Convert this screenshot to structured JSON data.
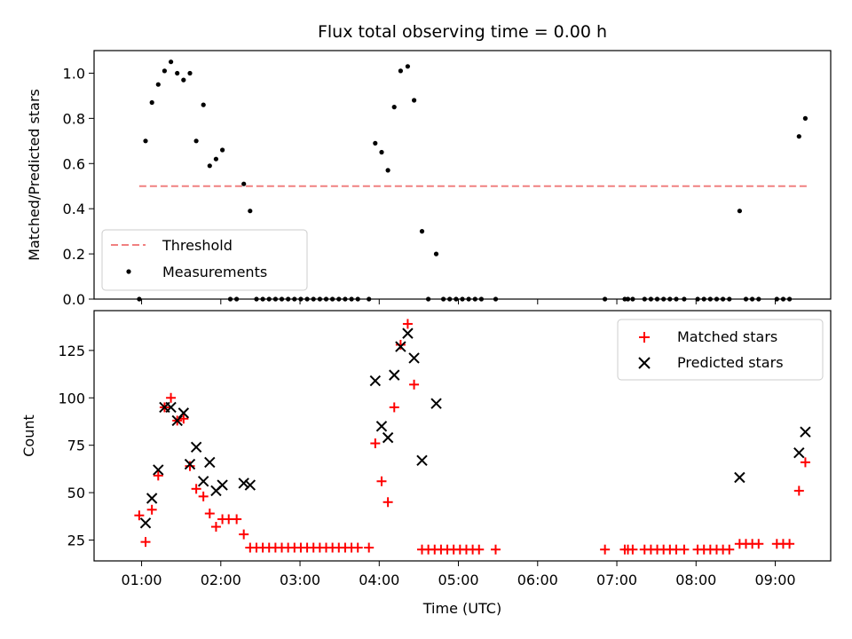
{
  "title": "Flux total observing time = 0.00 h",
  "colors": {
    "threshold": "#f08080",
    "measurements": "#000000",
    "matched": "#ff0000",
    "predicted": "#000000"
  },
  "chart_data": [
    {
      "type": "scatter",
      "ylabel": "Matched/Predicted stars",
      "xlim": [
        0.4,
        9.7
      ],
      "ylim": [
        0,
        1.1
      ],
      "yticks": [
        0.0,
        0.2,
        0.4,
        0.6,
        0.8,
        1.0
      ],
      "ytick_labels": [
        "0.0",
        "0.2",
        "0.4",
        "0.6",
        "0.8",
        "1.0"
      ],
      "legend": {
        "position": "lower-left",
        "threshold_label": "Threshold",
        "measurements_label": "Measurements"
      },
      "threshold": {
        "value": 0.5,
        "x_range": [
          0.97,
          9.4
        ]
      },
      "measurements": [
        [
          0.97,
          0.0
        ],
        [
          1.05,
          0.7
        ],
        [
          1.13,
          0.87
        ],
        [
          1.21,
          0.95
        ],
        [
          1.29,
          1.01
        ],
        [
          1.37,
          1.05
        ],
        [
          1.45,
          1.0
        ],
        [
          1.53,
          0.97
        ],
        [
          1.61,
          1.0
        ],
        [
          1.69,
          0.7
        ],
        [
          1.78,
          0.86
        ],
        [
          1.86,
          0.59
        ],
        [
          1.94,
          0.62
        ],
        [
          2.02,
          0.66
        ],
        [
          2.12,
          0.0
        ],
        [
          2.2,
          0.0
        ],
        [
          2.29,
          0.51
        ],
        [
          2.37,
          0.39
        ],
        [
          2.45,
          0.0
        ],
        [
          2.53,
          0.0
        ],
        [
          2.61,
          0.0
        ],
        [
          2.69,
          0.0
        ],
        [
          2.77,
          0.0
        ],
        [
          2.85,
          0.0
        ],
        [
          2.93,
          0.0
        ],
        [
          3.01,
          0.0
        ],
        [
          3.09,
          0.0
        ],
        [
          3.17,
          0.0
        ],
        [
          3.25,
          0.0
        ],
        [
          3.33,
          0.0
        ],
        [
          3.41,
          0.0
        ],
        [
          3.49,
          0.0
        ],
        [
          3.57,
          0.0
        ],
        [
          3.65,
          0.0
        ],
        [
          3.73,
          0.0
        ],
        [
          3.87,
          0.0
        ],
        [
          3.95,
          0.69
        ],
        [
          4.03,
          0.65
        ],
        [
          4.11,
          0.57
        ],
        [
          4.19,
          0.85
        ],
        [
          4.27,
          1.01
        ],
        [
          4.36,
          1.03
        ],
        [
          4.44,
          0.88
        ],
        [
          4.54,
          0.3
        ],
        [
          4.62,
          0.0
        ],
        [
          4.72,
          0.2
        ],
        [
          4.81,
          0.0
        ],
        [
          4.89,
          0.0
        ],
        [
          4.97,
          0.0
        ],
        [
          5.05,
          0.0
        ],
        [
          5.13,
          0.0
        ],
        [
          5.21,
          0.0
        ],
        [
          5.29,
          0.0
        ],
        [
          5.47,
          0.0
        ],
        [
          6.85,
          0.0
        ],
        [
          7.1,
          0.0
        ],
        [
          7.14,
          0.0
        ],
        [
          7.2,
          0.0
        ],
        [
          7.35,
          0.0
        ],
        [
          7.43,
          0.0
        ],
        [
          7.51,
          0.0
        ],
        [
          7.59,
          0.0
        ],
        [
          7.67,
          0.0
        ],
        [
          7.75,
          0.0
        ],
        [
          7.85,
          0.0
        ],
        [
          8.02,
          0.0
        ],
        [
          8.1,
          0.0
        ],
        [
          8.18,
          0.0
        ],
        [
          8.26,
          0.0
        ],
        [
          8.34,
          0.0
        ],
        [
          8.42,
          0.0
        ],
        [
          8.55,
          0.39
        ],
        [
          8.63,
          0.0
        ],
        [
          8.71,
          0.0
        ],
        [
          8.79,
          0.0
        ],
        [
          9.02,
          0.0
        ],
        [
          9.1,
          0.0
        ],
        [
          9.18,
          0.0
        ],
        [
          9.3,
          0.72
        ],
        [
          9.38,
          0.8
        ]
      ]
    },
    {
      "type": "scatter",
      "ylabel": "Count",
      "xlabel": "Time (UTC)",
      "xlim": [
        0.4,
        9.7
      ],
      "ylim": [
        14,
        146
      ],
      "xticks": [
        1,
        2,
        3,
        4,
        5,
        6,
        7,
        8,
        9
      ],
      "xtick_labels": [
        "01:00",
        "02:00",
        "03:00",
        "04:00",
        "05:00",
        "06:00",
        "07:00",
        "08:00",
        "09:00"
      ],
      "yticks": [
        25,
        50,
        75,
        100,
        125
      ],
      "ytick_labels": [
        "25",
        "50",
        "75",
        "100",
        "125"
      ],
      "legend": {
        "position": "upper-right",
        "matched_label": "Matched stars",
        "predicted_label": "Predicted stars"
      },
      "matched": [
        [
          0.97,
          38
        ],
        [
          1.05,
          24
        ],
        [
          1.13,
          41
        ],
        [
          1.21,
          59
        ],
        [
          1.29,
          95
        ],
        [
          1.37,
          100
        ],
        [
          1.45,
          88
        ],
        [
          1.53,
          89
        ],
        [
          1.61,
          64
        ],
        [
          1.69,
          52
        ],
        [
          1.78,
          48
        ],
        [
          1.86,
          39
        ],
        [
          1.94,
          32
        ],
        [
          2.02,
          36
        ],
        [
          2.1,
          36
        ],
        [
          2.2,
          36
        ],
        [
          2.29,
          28
        ],
        [
          2.37,
          21
        ],
        [
          2.45,
          21
        ],
        [
          2.53,
          21
        ],
        [
          2.61,
          21
        ],
        [
          2.69,
          21
        ],
        [
          2.77,
          21
        ],
        [
          2.85,
          21
        ],
        [
          2.93,
          21
        ],
        [
          3.01,
          21
        ],
        [
          3.09,
          21
        ],
        [
          3.17,
          21
        ],
        [
          3.25,
          21
        ],
        [
          3.33,
          21
        ],
        [
          3.41,
          21
        ],
        [
          3.49,
          21
        ],
        [
          3.57,
          21
        ],
        [
          3.65,
          21
        ],
        [
          3.73,
          21
        ],
        [
          3.87,
          21
        ],
        [
          3.95,
          76
        ],
        [
          4.03,
          56
        ],
        [
          4.11,
          45
        ],
        [
          4.19,
          95
        ],
        [
          4.27,
          128
        ],
        [
          4.36,
          139
        ],
        [
          4.44,
          107
        ],
        [
          4.54,
          20
        ],
        [
          4.62,
          20
        ],
        [
          4.7,
          20
        ],
        [
          4.78,
          20
        ],
        [
          4.86,
          20
        ],
        [
          4.94,
          20
        ],
        [
          5.02,
          20
        ],
        [
          5.1,
          20
        ],
        [
          5.18,
          20
        ],
        [
          5.26,
          20
        ],
        [
          5.47,
          20
        ],
        [
          6.85,
          20
        ],
        [
          7.1,
          20
        ],
        [
          7.14,
          20
        ],
        [
          7.2,
          20
        ],
        [
          7.35,
          20
        ],
        [
          7.43,
          20
        ],
        [
          7.51,
          20
        ],
        [
          7.59,
          20
        ],
        [
          7.67,
          20
        ],
        [
          7.75,
          20
        ],
        [
          7.85,
          20
        ],
        [
          8.02,
          20
        ],
        [
          8.1,
          20
        ],
        [
          8.18,
          20
        ],
        [
          8.26,
          20
        ],
        [
          8.34,
          20
        ],
        [
          8.42,
          20
        ],
        [
          8.55,
          23
        ],
        [
          8.63,
          23
        ],
        [
          8.71,
          23
        ],
        [
          8.79,
          23
        ],
        [
          9.02,
          23
        ],
        [
          9.1,
          23
        ],
        [
          9.18,
          23
        ],
        [
          9.3,
          51
        ],
        [
          9.38,
          66
        ]
      ],
      "predicted": [
        [
          1.05,
          34
        ],
        [
          1.13,
          47
        ],
        [
          1.21,
          62
        ],
        [
          1.29,
          95
        ],
        [
          1.37,
          95
        ],
        [
          1.45,
          88
        ],
        [
          1.53,
          92
        ],
        [
          1.61,
          65
        ],
        [
          1.69,
          74
        ],
        [
          1.78,
          56
        ],
        [
          1.86,
          66
        ],
        [
          1.94,
          51
        ],
        [
          2.02,
          54
        ],
        [
          2.29,
          55
        ],
        [
          2.37,
          54
        ],
        [
          3.95,
          109
        ],
        [
          4.03,
          85
        ],
        [
          4.11,
          79
        ],
        [
          4.19,
          112
        ],
        [
          4.27,
          127
        ],
        [
          4.36,
          134
        ],
        [
          4.44,
          121
        ],
        [
          4.54,
          67
        ],
        [
          4.72,
          97
        ],
        [
          8.55,
          58
        ],
        [
          9.3,
          71
        ],
        [
          9.38,
          82
        ]
      ]
    }
  ]
}
